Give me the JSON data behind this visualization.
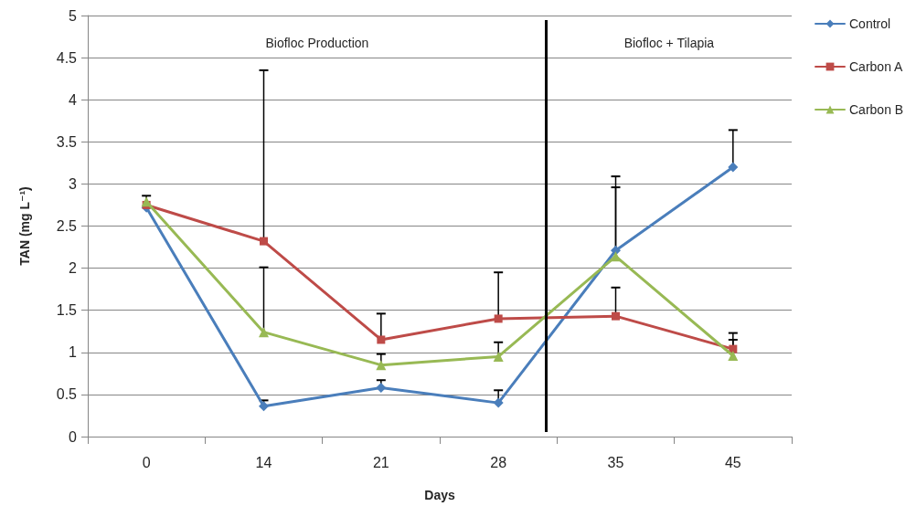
{
  "chart_data": {
    "type": "line",
    "xlabel": "Days",
    "ylabel": "TAN (mg L⁻¹)",
    "categories": [
      "0",
      "14",
      "21",
      "28",
      "35",
      "45"
    ],
    "series": [
      {
        "name": "Control",
        "color": "#4a7ebb",
        "marker": "diamond",
        "values": [
          2.72,
          0.36,
          0.58,
          0.4,
          2.21,
          3.2
        ],
        "errors": [
          null,
          [
            0.36,
            0.43
          ],
          [
            0.58,
            0.67
          ],
          [
            0.4,
            0.55
          ],
          [
            2.21,
            2.96
          ],
          [
            3.2,
            3.64
          ]
        ]
      },
      {
        "name": "Carbon A",
        "color": "#be4b48",
        "marker": "square",
        "values": [
          2.75,
          2.32,
          1.15,
          1.4,
          1.43,
          1.04
        ],
        "errors": [
          [
            2.75,
            2.86
          ],
          [
            2.32,
            4.35
          ],
          [
            1.15,
            1.46
          ],
          [
            1.4,
            1.95
          ],
          [
            1.43,
            1.77
          ],
          [
            1.04,
            1.23
          ]
        ]
      },
      {
        "name": "Carbon B",
        "color": "#98b954",
        "marker": "triangle",
        "values": [
          2.79,
          1.24,
          0.85,
          0.95,
          2.14,
          0.96
        ],
        "errors": [
          null,
          [
            1.24,
            2.01
          ],
          [
            0.85,
            0.98
          ],
          [
            0.95,
            1.12
          ],
          [
            2.14,
            3.09
          ],
          [
            0.96,
            1.15
          ]
        ]
      }
    ],
    "ylim": [
      0,
      5
    ],
    "yticks": [
      0,
      0.5,
      1,
      1.5,
      2,
      2.5,
      3,
      3.5,
      4,
      4.5,
      5
    ],
    "grid": "y",
    "legend": "top right",
    "line_style": "solid",
    "annotations": [
      "Biofloc Production",
      "Biofloc + Tilapia"
    ]
  }
}
